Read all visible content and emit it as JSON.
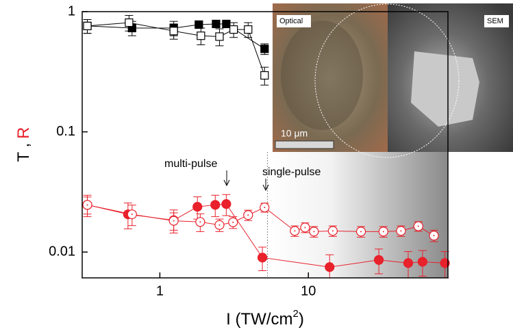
{
  "chart_data": {
    "type": "scatter",
    "ylabel_parts": [
      "T ,",
      "R"
    ],
    "xlabel_parts": [
      "I (TW/cm",
      "2",
      ")"
    ],
    "xscale": "log",
    "yscale": "log",
    "xlim": [
      0.3,
      87
    ],
    "ylim": [
      0.0061,
      1
    ],
    "xticks": [
      1,
      10
    ],
    "yticks": [
      0.01,
      0.1,
      1
    ],
    "vline_x": 5.3,
    "annotations": [
      "multi-pulse",
      "single-pulse"
    ],
    "inset_labels": [
      "Optical",
      "SEM",
      "10 μm"
    ],
    "series": [
      {
        "color": "#000000",
        "marker": "square",
        "filled": true,
        "x": [
          0.325,
          0.65,
          1.24,
          1.83,
          2.39,
          2.8,
          5.07
        ],
        "values": [
          0.76,
          0.73,
          0.73,
          0.78,
          0.79,
          0.79,
          0.49
        ],
        "errors": [
          0.1,
          0.1,
          0.1,
          0.05,
          0.05,
          0.05,
          0.05
        ]
      },
      {
        "color": "#000000",
        "marker": "square",
        "filled": false,
        "x": [
          0.325,
          0.62,
          1.24,
          1.89,
          2.52,
          3.14,
          3.93,
          5.07
        ],
        "values": [
          0.76,
          0.81,
          0.69,
          0.63,
          0.62,
          0.71,
          0.71,
          0.295
        ],
        "errors": [
          0.1,
          0.12,
          0.1,
          0.1,
          0.1,
          0.1,
          0.1,
          0.05
        ]
      },
      {
        "color": "#e8212b",
        "marker": "circle",
        "filled": true,
        "x": [
          0.325,
          0.61,
          1.24,
          1.79,
          2.36,
          2.8,
          4.9,
          13.9,
          29.8,
          47,
          58.7,
          83
        ],
        "values": [
          0.0247,
          0.0206,
          0.0184,
          0.0238,
          0.0247,
          0.0251,
          0.009,
          0.0075,
          0.0086,
          0.0081,
          0.0083,
          0.0081
        ],
        "errors": [
          0.005,
          0.005,
          0.004,
          0.005,
          0.005,
          0.005,
          0.002,
          0.002,
          0.002,
          0.002,
          0.002,
          0.002
        ]
      },
      {
        "color": "#e8212b",
        "marker": "circle",
        "filled": false,
        "x": [
          0.325,
          0.65,
          1.24,
          1.87,
          2.52,
          3.11,
          3.93,
          5.07,
          8.1,
          9.5,
          10.9,
          14.6,
          22.6,
          32,
          42,
          55,
          70
        ],
        "values": [
          0.0247,
          0.0206,
          0.0182,
          0.0178,
          0.0168,
          0.0177,
          0.0203,
          0.0235,
          0.015,
          0.016,
          0.0148,
          0.015,
          0.0148,
          0.0148,
          0.015,
          0.0164,
          0.0137
        ],
        "errors": [
          0.004,
          0.004,
          0.003,
          0.003,
          0.002,
          0.002,
          0.002,
          0.002,
          0.0015,
          0.0015,
          0.0015,
          0.0015,
          0.0015,
          0.0015,
          0.0015,
          0.0015,
          0.0015
        ]
      }
    ]
  }
}
